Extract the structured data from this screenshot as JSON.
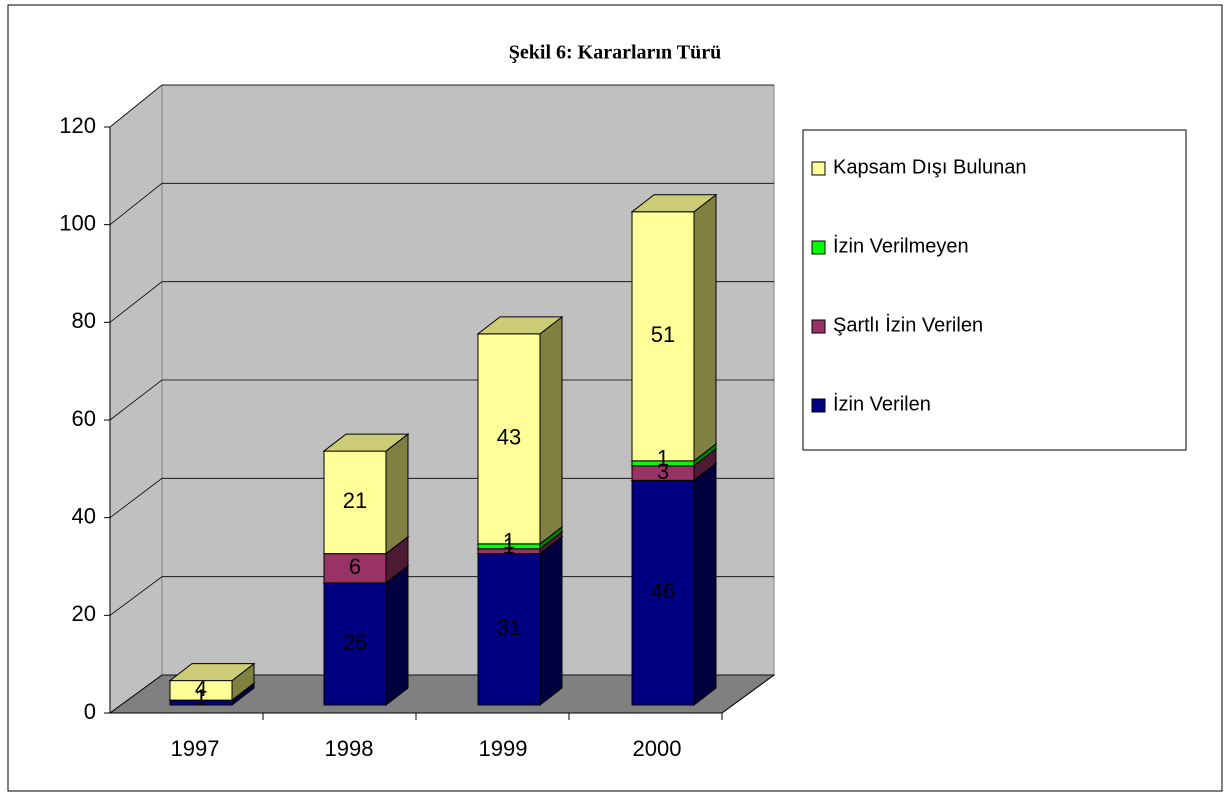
{
  "chart_data": {
    "type": "bar3d_stacked",
    "title": "Şekil 6: Kararların Türü",
    "categories": [
      "1997",
      "1998",
      "1999",
      "2000"
    ],
    "series": [
      {
        "name": "İzin Verilen",
        "color": "#000080",
        "side": "#000040",
        "top": "#3333a0",
        "values": [
          1,
          25,
          31,
          46
        ]
      },
      {
        "name": "Şartlı İzin Verilen",
        "color": "#993366",
        "side": "#4d1a33",
        "top": "#b36b8f",
        "values": [
          0,
          6,
          1,
          3
        ]
      },
      {
        "name": "İzin Verilmeyen",
        "color": "#00ff00",
        "side": "#008000",
        "top": "#66ff66",
        "values": [
          0,
          0,
          1,
          1
        ]
      },
      {
        "name": "Kapsam Dışı Bulunan",
        "color": "#ffff99",
        "side": "#808040",
        "top": "#cccc77",
        "values": [
          4,
          21,
          43,
          51
        ]
      }
    ],
    "ylim": [
      0,
      120
    ],
    "yticks": [
      0,
      20,
      40,
      60,
      80,
      100,
      120
    ],
    "grid": true,
    "legend": "right"
  }
}
